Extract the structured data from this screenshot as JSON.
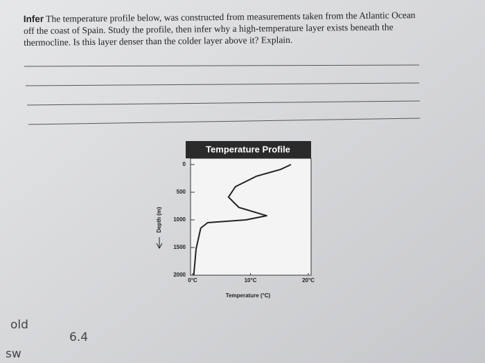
{
  "question": {
    "label": "Infer",
    "text": "The temperature profile below, was constructed from measurements taken from the Atlantic Ocean off the coast of Spain. Study the profile, then infer why a high-temperature layer exists beneath the thermocline. Is this layer denser than the colder layer above it? Explain."
  },
  "chart_data": {
    "type": "line",
    "title": "Temperature Profile",
    "x_label": "Temperature (°C)",
    "y_label": "Depth (m)",
    "x": [
      17,
      15.2,
      11,
      7.4,
      6.2,
      8,
      12.8,
      9.2,
      2.6,
      1.4,
      0.6,
      0.2
    ],
    "series": [
      {
        "name": "Temperature",
        "color": "#222222",
        "values": [
          0,
          88,
          212,
          400,
          588,
          775,
          925,
          1000,
          1050,
          1150,
          1525,
          2000
        ]
      }
    ],
    "xlim": [
      0,
      20
    ],
    "xticks": [
      {
        "value": 0,
        "label": "0°C"
      },
      {
        "value": 10,
        "label": "10°C"
      },
      {
        "value": 20,
        "label": "20°C"
      }
    ],
    "ylim": [
      2000,
      0
    ],
    "yticks": [
      0,
      500,
      1000,
      1500,
      2000
    ]
  },
  "handwriting": [
    "old",
    "6.4",
    "sw"
  ]
}
